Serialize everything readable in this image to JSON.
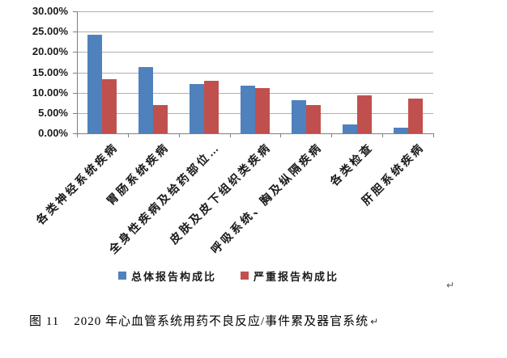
{
  "chart_data": {
    "type": "bar",
    "title": "",
    "xlabel": "",
    "ylabel": "",
    "categories": [
      "各类神经系统疾病",
      "胃肠系统疾病",
      "全身性疾病及给药部位…",
      "皮肤及皮下组织类疾病",
      "呼吸系统、胸及纵隔疾病",
      "各类检查",
      "肝胆系统疾病"
    ],
    "series": [
      {
        "name": "总体报告构成比",
        "color": "#4F81BD",
        "values": [
          24.3,
          16.2,
          12.1,
          11.7,
          8.1,
          2.2,
          1.4
        ]
      },
      {
        "name": "严重报告构成比",
        "color": "#C0504D",
        "values": [
          13.3,
          7.0,
          12.9,
          11.1,
          6.9,
          9.3,
          8.6
        ]
      }
    ],
    "ylim": [
      0,
      30
    ],
    "ytick_step": 5,
    "ytick_format": "percent-two-decimals",
    "ytick_labels": [
      "0.00%",
      "5.00%",
      "10.00%",
      "15.00%",
      "20.00%",
      "25.00%",
      "30.00%"
    ],
    "grid": true,
    "legend_position": "bottom",
    "axis_color": "#7f7f7f",
    "gridline_color": "#b0b0b0"
  },
  "marks": {
    "after_chart": "↵",
    "after_caption": "↵"
  },
  "caption": {
    "figure_label": "图 11",
    "text": "2020 年心血管系统用药不良反应/事件累及器官系统"
  }
}
